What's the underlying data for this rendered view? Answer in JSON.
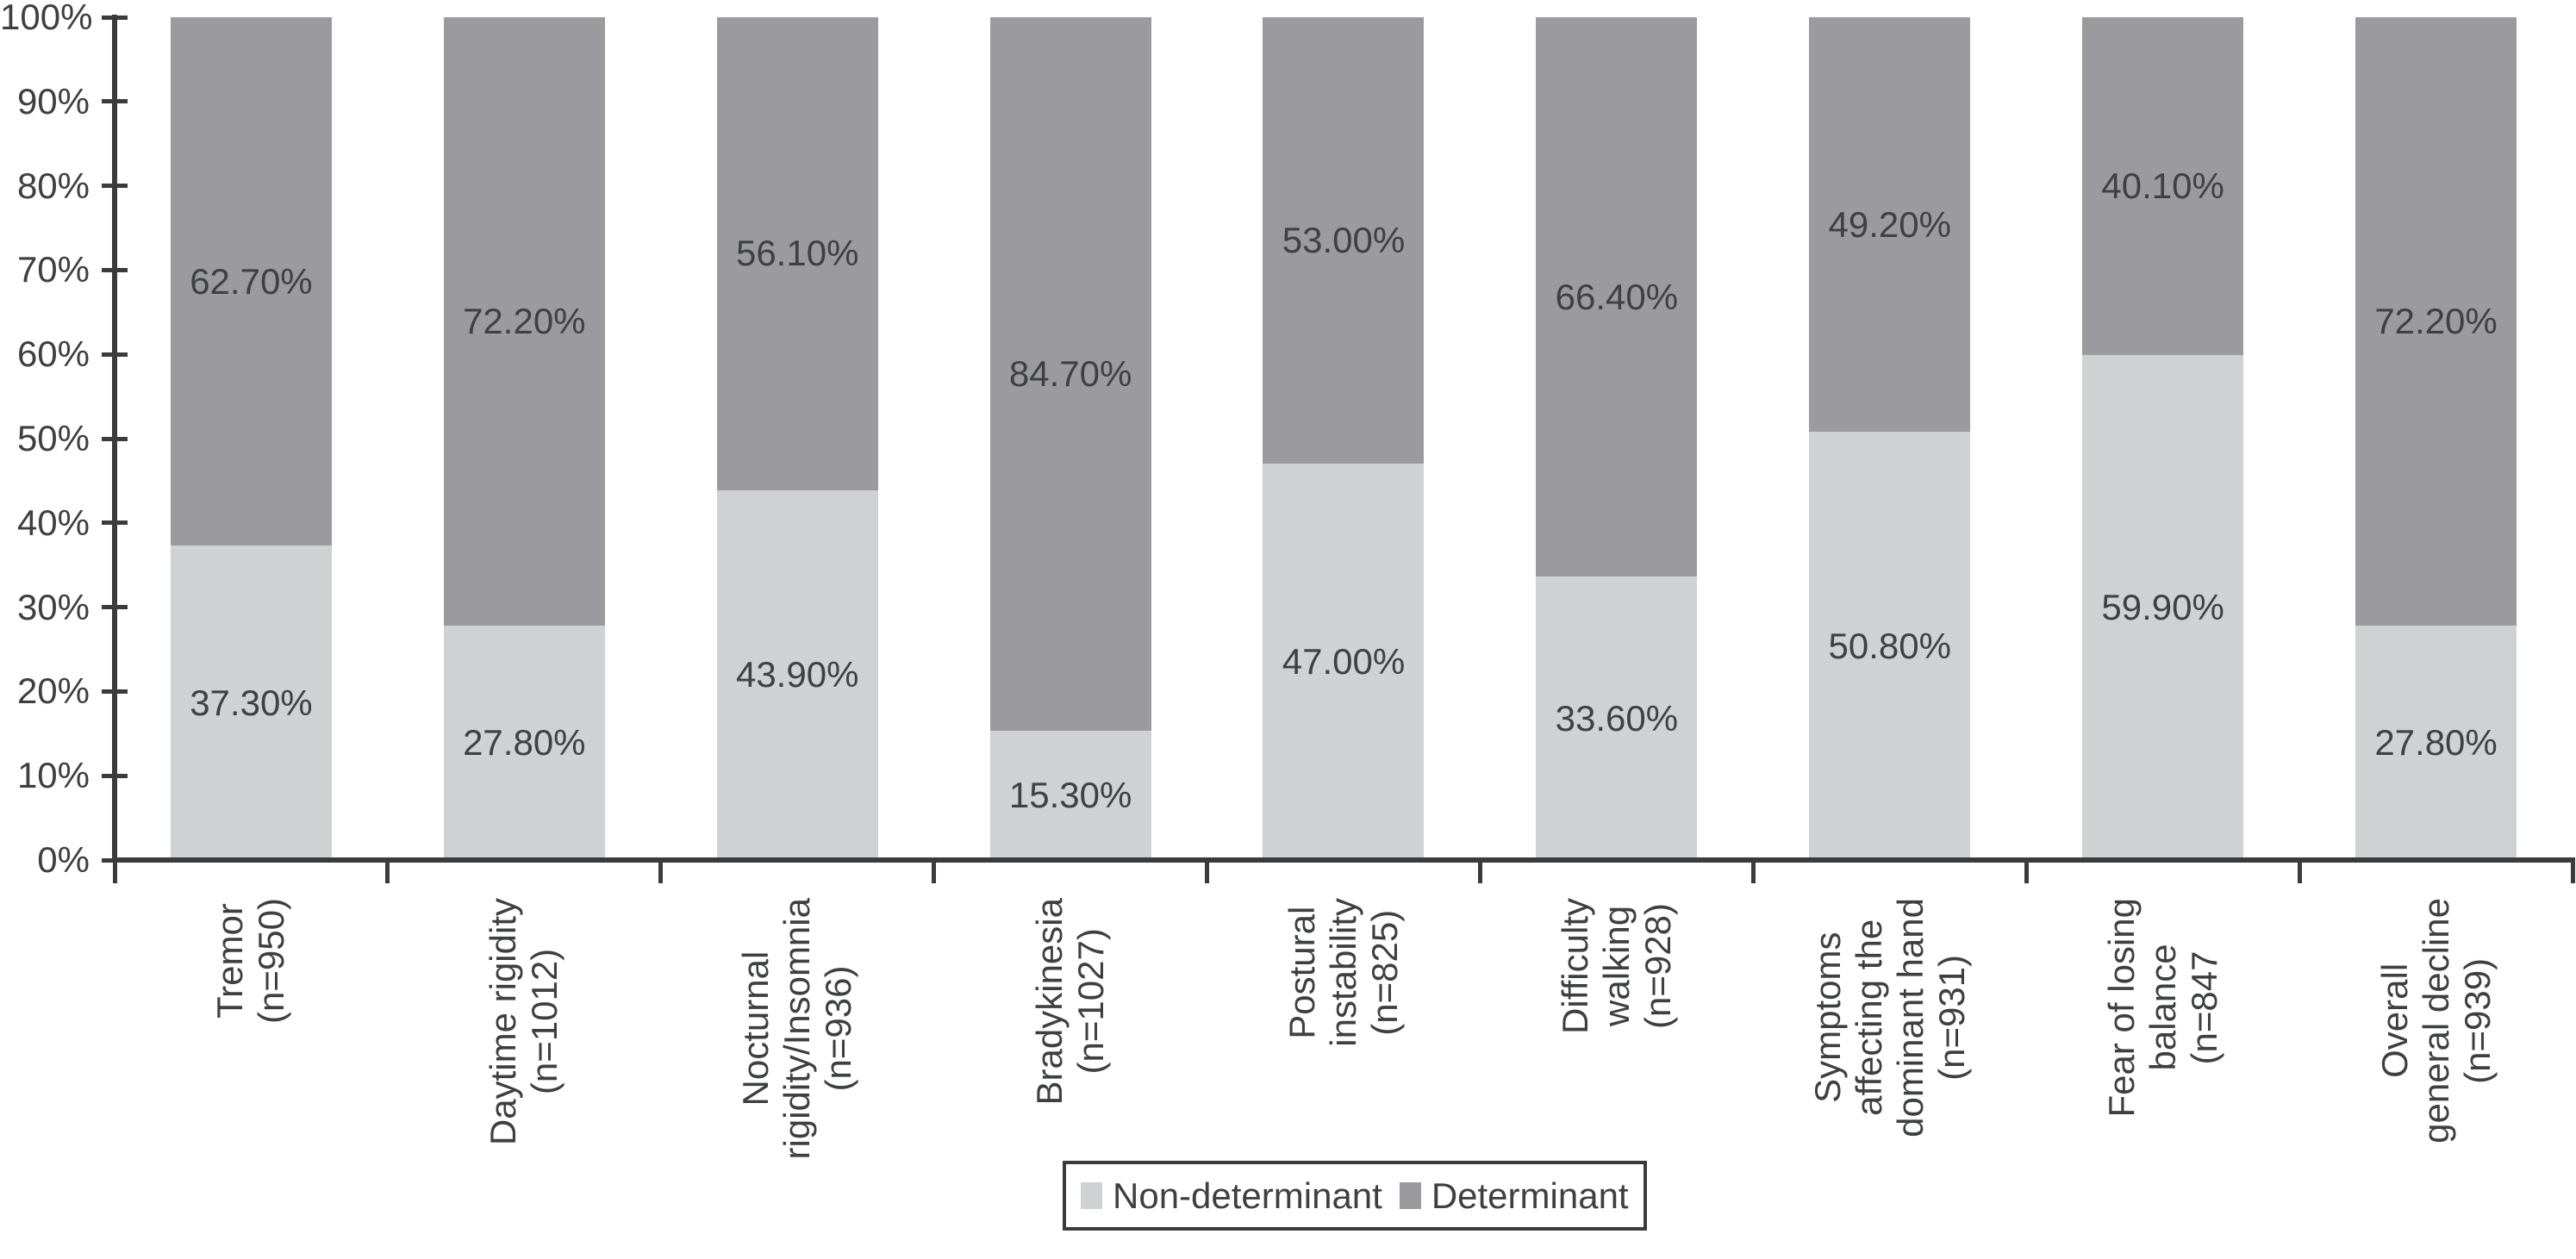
{
  "chart_data": {
    "type": "bar",
    "subtype": "stacked-100-percent-column",
    "title": "",
    "xlabel": "",
    "ylabel": "",
    "grid": false,
    "legend_position": "bottom",
    "background": "#ffffff",
    "axis_color": "#3b3b3d",
    "text_color": "#3e3f41",
    "categories": [
      "Tremor\n(n=950)",
      "Daytime rigidity\n(n=1012)",
      "Nocturnal\nrigidity/Insomnia\n(n=936)",
      "Bradykinesia\n(n=1027)",
      "Postural\ninstability\n(n=825)",
      "Difficulty\nwalking\n(n=928)",
      "Symptoms\naffecting the\ndominant hand\n(n=931)",
      "Fear of losing\nbalance\n(n=847",
      "Overall\ngeneral decline\n(n=939)"
    ],
    "series": [
      {
        "name": "Non-determinant",
        "color": "#d0d1d3",
        "values": [
          37.3,
          27.8,
          43.9,
          15.3,
          47.0,
          33.6,
          50.8,
          59.9,
          27.8
        ],
        "data_labels": [
          "37.30%",
          "27.80%",
          "43.90%",
          "15.30%",
          "47.00%",
          "33.60%",
          "50.80%",
          "59.90%",
          "27.80%"
        ]
      },
      {
        "name": "Determinant",
        "color": "#9b9b9f",
        "values": [
          62.7,
          72.2,
          56.1,
          84.7,
          53.0,
          66.4,
          49.2,
          40.1,
          72.2
        ],
        "data_labels": [
          "62.70%",
          "72.20%",
          "56.10%",
          "84.70%",
          "53.00%",
          "66.40%",
          "49.20%",
          "40.10%",
          "72.20%"
        ]
      }
    ],
    "y_axis": {
      "min": 0,
      "max": 100,
      "tick_labels": [
        "0%",
        "10%",
        "20%",
        "30%",
        "40%",
        "50%",
        "60%",
        "70%",
        "80%",
        "90%",
        "100%"
      ]
    },
    "legend": {
      "entries": [
        "Non-determinant",
        "Determinant"
      ]
    }
  }
}
